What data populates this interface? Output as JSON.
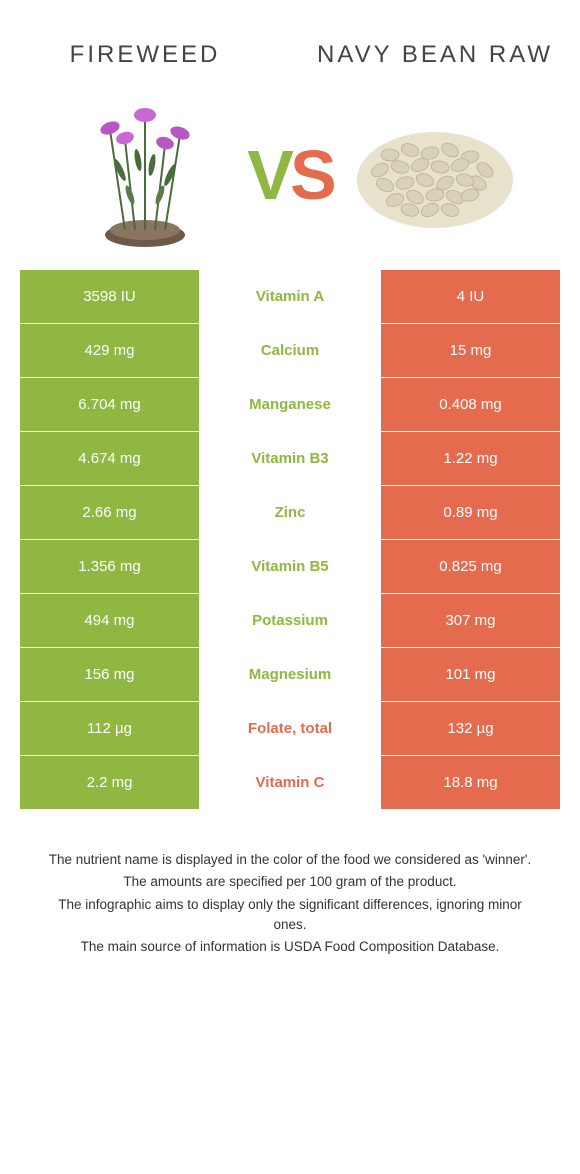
{
  "header": {
    "left_title": "Fireweed",
    "right_title": "Navy bean raw",
    "vs_v": "V",
    "vs_s": "S"
  },
  "colors": {
    "green": "#8fb741",
    "orange": "#e56b4e",
    "plant_flower": "#b857c4",
    "plant_leaf": "#4a6b3a",
    "plant_root": "#6b5a4a",
    "bean_fill": "#d9d2b8",
    "bean_stroke": "#b8b090"
  },
  "rows": [
    {
      "nutrient": "Vitamin A",
      "left": "3598 IU",
      "right": "4 IU",
      "winner": "left"
    },
    {
      "nutrient": "Calcium",
      "left": "429 mg",
      "right": "15 mg",
      "winner": "left"
    },
    {
      "nutrient": "Manganese",
      "left": "6.704 mg",
      "right": "0.408 mg",
      "winner": "left"
    },
    {
      "nutrient": "Vitamin B3",
      "left": "4.674 mg",
      "right": "1.22 mg",
      "winner": "left"
    },
    {
      "nutrient": "Zinc",
      "left": "2.66 mg",
      "right": "0.89 mg",
      "winner": "left"
    },
    {
      "nutrient": "Vitamin B5",
      "left": "1.356 mg",
      "right": "0.825 mg",
      "winner": "left"
    },
    {
      "nutrient": "Potassium",
      "left": "494 mg",
      "right": "307 mg",
      "winner": "left"
    },
    {
      "nutrient": "Magnesium",
      "left": "156 mg",
      "right": "101 mg",
      "winner": "left"
    },
    {
      "nutrient": "Folate, total",
      "left": "112 µg",
      "right": "132 µg",
      "winner": "right"
    },
    {
      "nutrient": "Vitamin C",
      "left": "2.2 mg",
      "right": "18.8 mg",
      "winner": "right"
    }
  ],
  "footnotes": {
    "l1": "The nutrient name is displayed in the color of the food we considered as 'winner'.",
    "l2": "The amounts are specified per 100 gram of the product.",
    "l3": "The infographic aims to display only the significant differences, ignoring minor ones.",
    "l4": "The main source of information is USDA Food Composition Database."
  }
}
